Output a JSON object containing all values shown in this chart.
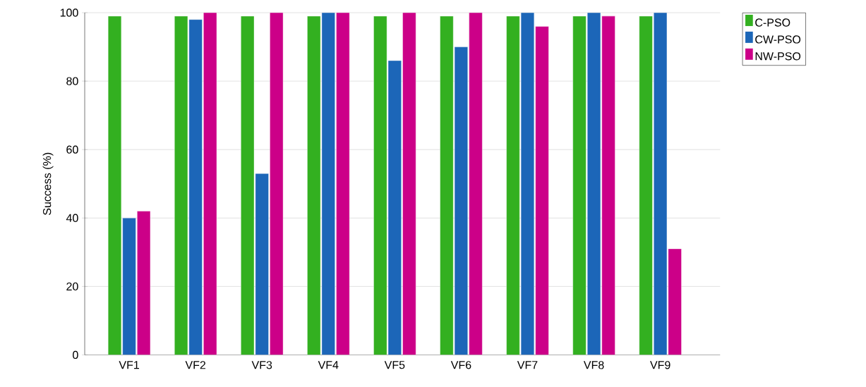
{
  "chart_data": {
    "type": "bar",
    "ylabel": "Success (%)",
    "categories": [
      "VF1",
      "VF2",
      "VF3",
      "VF4",
      "VF5",
      "VF6",
      "VF7",
      "VF8",
      "VF9"
    ],
    "series": [
      {
        "name": "C-PSO",
        "color": "#33b020",
        "values": [
          99,
          99,
          99,
          99,
          99,
          99,
          99,
          99,
          99
        ]
      },
      {
        "name": "CW-PSO",
        "color": "#1c66b8",
        "values": [
          40,
          98,
          53,
          100,
          86,
          90,
          100,
          100,
          100
        ]
      },
      {
        "name": "NW-PSO",
        "color": "#cc0088",
        "values": [
          42,
          100,
          100,
          100,
          100,
          100,
          96,
          99,
          31
        ]
      }
    ],
    "ylim": [
      0,
      100
    ],
    "yticks": [
      0,
      20,
      40,
      60,
      80,
      100
    ],
    "grid": "y",
    "legend": "top right"
  }
}
